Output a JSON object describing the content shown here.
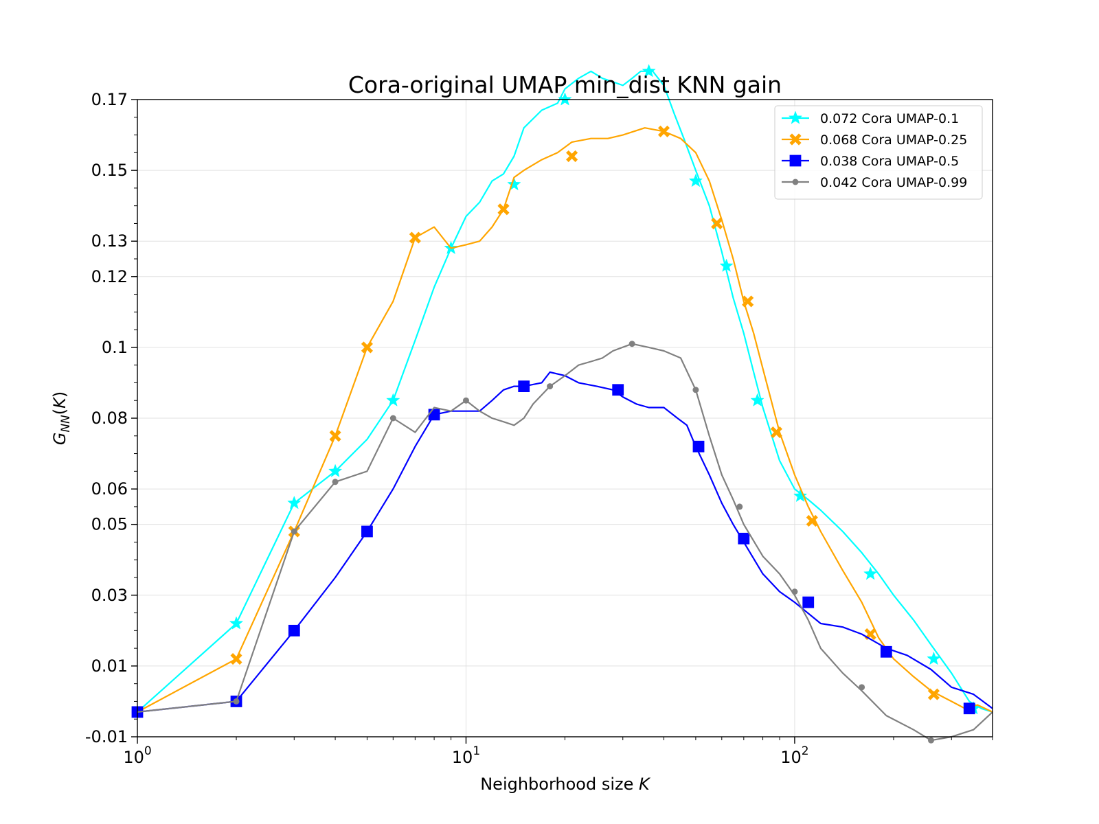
{
  "chart_data": {
    "type": "line",
    "title": "Cora-original UMAP min_dist KNN gain",
    "xlabel": "Neighborhood size K",
    "ylabel": "G_NN(K)",
    "xscale": "log",
    "xlim": [
      1,
      400
    ],
    "ylim": [
      -0.01,
      0.17
    ],
    "x_ticks": [
      1,
      10,
      100
    ],
    "x_tick_labels": [
      "10^0",
      "10^1",
      "10^2"
    ],
    "y_ticks": [
      -0.01,
      0.01,
      0.03,
      0.05,
      0.06,
      0.08,
      0.1,
      0.12,
      0.13,
      0.15,
      0.17
    ],
    "y_tick_labels": [
      "-0.01",
      "0.01",
      "0.03",
      "0.05",
      "0.06",
      "0.08",
      "0.1",
      "0.12",
      "0.13",
      "0.15",
      "0.17"
    ],
    "grid": true,
    "legend_position": "top-right",
    "series": [
      {
        "name": "0.072 Cora UMAP-0.1",
        "color": "#00ffff",
        "marker": "star",
        "points": [
          [
            1,
            -0.003
          ],
          [
            2,
            0.022
          ],
          [
            3,
            0.056
          ],
          [
            4,
            0.065
          ],
          [
            5,
            0.074
          ],
          [
            6,
            0.085
          ],
          [
            7,
            0.102
          ],
          [
            8,
            0.117
          ],
          [
            9,
            0.128
          ],
          [
            10,
            0.137
          ],
          [
            11,
            0.141
          ],
          [
            12,
            0.147
          ],
          [
            13,
            0.149
          ],
          [
            14,
            0.154
          ],
          [
            15,
            0.162
          ],
          [
            17,
            0.167
          ],
          [
            19,
            0.169
          ],
          [
            20,
            0.173
          ],
          [
            22,
            0.176
          ],
          [
            24,
            0.178
          ],
          [
            26,
            0.176
          ],
          [
            28,
            0.175
          ],
          [
            30,
            0.174
          ],
          [
            32,
            0.176
          ],
          [
            34,
            0.178
          ],
          [
            37,
            0.178
          ],
          [
            40,
            0.174
          ],
          [
            43,
            0.166
          ],
          [
            46,
            0.159
          ],
          [
            50,
            0.15
          ],
          [
            55,
            0.14
          ],
          [
            60,
            0.127
          ],
          [
            65,
            0.114
          ],
          [
            70,
            0.104
          ],
          [
            75,
            0.093
          ],
          [
            80,
            0.083
          ],
          [
            90,
            0.068
          ],
          [
            100,
            0.06
          ],
          [
            110,
            0.057
          ],
          [
            120,
            0.054
          ],
          [
            140,
            0.048
          ],
          [
            160,
            0.042
          ],
          [
            180,
            0.036
          ],
          [
            200,
            0.03
          ],
          [
            230,
            0.023
          ],
          [
            260,
            0.016
          ],
          [
            300,
            0.008
          ],
          [
            340,
            0.0
          ],
          [
            370,
            -0.002
          ],
          [
            400,
            -0.003
          ]
        ],
        "marker_points": [
          [
            2,
            0.022
          ],
          [
            3,
            0.056
          ],
          [
            4,
            0.065
          ],
          [
            6,
            0.085
          ],
          [
            9,
            0.128
          ],
          [
            14,
            0.146
          ],
          [
            20,
            0.17
          ],
          [
            36,
            0.178
          ],
          [
            50,
            0.147
          ],
          [
            62,
            0.123
          ],
          [
            77,
            0.085
          ],
          [
            104,
            0.058
          ],
          [
            170,
            0.036
          ],
          [
            265,
            0.012
          ],
          [
            350,
            -0.002
          ]
        ]
      },
      {
        "name": "0.068 Cora UMAP-0.25",
        "color": "#ffa500",
        "marker": "x",
        "points": [
          [
            1,
            -0.003
          ],
          [
            2,
            0.012
          ],
          [
            3,
            0.048
          ],
          [
            4,
            0.075
          ],
          [
            5,
            0.1
          ],
          [
            6,
            0.113
          ],
          [
            7,
            0.131
          ],
          [
            8,
            0.134
          ],
          [
            9,
            0.128
          ],
          [
            10,
            0.129
          ],
          [
            11,
            0.13
          ],
          [
            12,
            0.134
          ],
          [
            13,
            0.139
          ],
          [
            14,
            0.148
          ],
          [
            15,
            0.15
          ],
          [
            17,
            0.153
          ],
          [
            19,
            0.155
          ],
          [
            21,
            0.158
          ],
          [
            24,
            0.159
          ],
          [
            27,
            0.159
          ],
          [
            30,
            0.16
          ],
          [
            35,
            0.162
          ],
          [
            40,
            0.161
          ],
          [
            45,
            0.159
          ],
          [
            50,
            0.155
          ],
          [
            55,
            0.147
          ],
          [
            60,
            0.136
          ],
          [
            65,
            0.125
          ],
          [
            70,
            0.113
          ],
          [
            75,
            0.104
          ],
          [
            80,
            0.094
          ],
          [
            90,
            0.076
          ],
          [
            100,
            0.064
          ],
          [
            110,
            0.055
          ],
          [
            120,
            0.048
          ],
          [
            140,
            0.037
          ],
          [
            160,
            0.028
          ],
          [
            180,
            0.018
          ],
          [
            200,
            0.012
          ],
          [
            230,
            0.007
          ],
          [
            260,
            0.003
          ],
          [
            300,
            0.0
          ],
          [
            330,
            -0.002
          ],
          [
            360,
            -0.001
          ],
          [
            400,
            -0.003
          ]
        ],
        "marker_points": [
          [
            2,
            0.012
          ],
          [
            3,
            0.048
          ],
          [
            4,
            0.075
          ],
          [
            5,
            0.1
          ],
          [
            7,
            0.131
          ],
          [
            13,
            0.139
          ],
          [
            21,
            0.154
          ],
          [
            40,
            0.161
          ],
          [
            58,
            0.135
          ],
          [
            72,
            0.113
          ],
          [
            88,
            0.076
          ],
          [
            113,
            0.051
          ],
          [
            170,
            0.019
          ],
          [
            265,
            0.002
          ]
        ]
      },
      {
        "name": "0.038 Cora UMAP-0.5",
        "color": "#0000ff",
        "marker": "square",
        "points": [
          [
            1,
            -0.003
          ],
          [
            2,
            0.0
          ],
          [
            3,
            0.02
          ],
          [
            4,
            0.035
          ],
          [
            5,
            0.048
          ],
          [
            6,
            0.06
          ],
          [
            7,
            0.072
          ],
          [
            8,
            0.081
          ],
          [
            9,
            0.082
          ],
          [
            10,
            0.082
          ],
          [
            11,
            0.082
          ],
          [
            12,
            0.085
          ],
          [
            13,
            0.088
          ],
          [
            14,
            0.089
          ],
          [
            15,
            0.089
          ],
          [
            17,
            0.09
          ],
          [
            18,
            0.093
          ],
          [
            20,
            0.092
          ],
          [
            22,
            0.09
          ],
          [
            25,
            0.089
          ],
          [
            28,
            0.088
          ],
          [
            30,
            0.086
          ],
          [
            33,
            0.084
          ],
          [
            36,
            0.083
          ],
          [
            40,
            0.083
          ],
          [
            44,
            0.08
          ],
          [
            47,
            0.078
          ],
          [
            50,
            0.072
          ],
          [
            55,
            0.064
          ],
          [
            60,
            0.056
          ],
          [
            65,
            0.05
          ],
          [
            70,
            0.045
          ],
          [
            80,
            0.036
          ],
          [
            90,
            0.031
          ],
          [
            100,
            0.028
          ],
          [
            120,
            0.022
          ],
          [
            140,
            0.021
          ],
          [
            160,
            0.019
          ],
          [
            190,
            0.015
          ],
          [
            220,
            0.013
          ],
          [
            260,
            0.009
          ],
          [
            300,
            0.004
          ],
          [
            350,
            0.002
          ],
          [
            400,
            -0.002
          ]
        ],
        "marker_points": [
          [
            1,
            -0.003
          ],
          [
            2,
            0.0
          ],
          [
            3,
            0.02
          ],
          [
            5,
            0.048
          ],
          [
            8,
            0.081
          ],
          [
            15,
            0.089
          ],
          [
            29,
            0.088
          ],
          [
            51,
            0.072
          ],
          [
            70,
            0.046
          ],
          [
            110,
            0.028
          ],
          [
            190,
            0.014
          ],
          [
            340,
            -0.002
          ]
        ]
      },
      {
        "name": "0.042 Cora UMAP-0.99",
        "color": "#808080",
        "marker": "circle",
        "points": [
          [
            1,
            -0.003
          ],
          [
            2,
            0.0
          ],
          [
            3,
            0.048
          ],
          [
            4,
            0.062
          ],
          [
            5,
            0.065
          ],
          [
            6,
            0.08
          ],
          [
            7,
            0.076
          ],
          [
            8,
            0.083
          ],
          [
            9,
            0.082
          ],
          [
            10,
            0.085
          ],
          [
            11,
            0.082
          ],
          [
            12,
            0.08
          ],
          [
            13,
            0.079
          ],
          [
            14,
            0.078
          ],
          [
            15,
            0.08
          ],
          [
            16,
            0.084
          ],
          [
            18,
            0.089
          ],
          [
            20,
            0.092
          ],
          [
            22,
            0.095
          ],
          [
            24,
            0.096
          ],
          [
            26,
            0.097
          ],
          [
            28,
            0.099
          ],
          [
            32,
            0.101
          ],
          [
            36,
            0.1
          ],
          [
            40,
            0.099
          ],
          [
            45,
            0.097
          ],
          [
            50,
            0.088
          ],
          [
            55,
            0.075
          ],
          [
            60,
            0.064
          ],
          [
            65,
            0.057
          ],
          [
            70,
            0.05
          ],
          [
            80,
            0.041
          ],
          [
            90,
            0.036
          ],
          [
            100,
            0.03
          ],
          [
            110,
            0.023
          ],
          [
            120,
            0.015
          ],
          [
            140,
            0.008
          ],
          [
            160,
            0.003
          ],
          [
            190,
            -0.004
          ],
          [
            230,
            -0.008
          ],
          [
            260,
            -0.011
          ],
          [
            300,
            -0.01
          ],
          [
            350,
            -0.008
          ],
          [
            400,
            -0.003
          ]
        ],
        "marker_points": [
          [
            2,
            0.0
          ],
          [
            3,
            0.048
          ],
          [
            4,
            0.062
          ],
          [
            6,
            0.08
          ],
          [
            10,
            0.085
          ],
          [
            18,
            0.089
          ],
          [
            32,
            0.101
          ],
          [
            50,
            0.088
          ],
          [
            68,
            0.055
          ],
          [
            100,
            0.031
          ],
          [
            160,
            0.004
          ],
          [
            260,
            -0.011
          ]
        ]
      }
    ]
  }
}
